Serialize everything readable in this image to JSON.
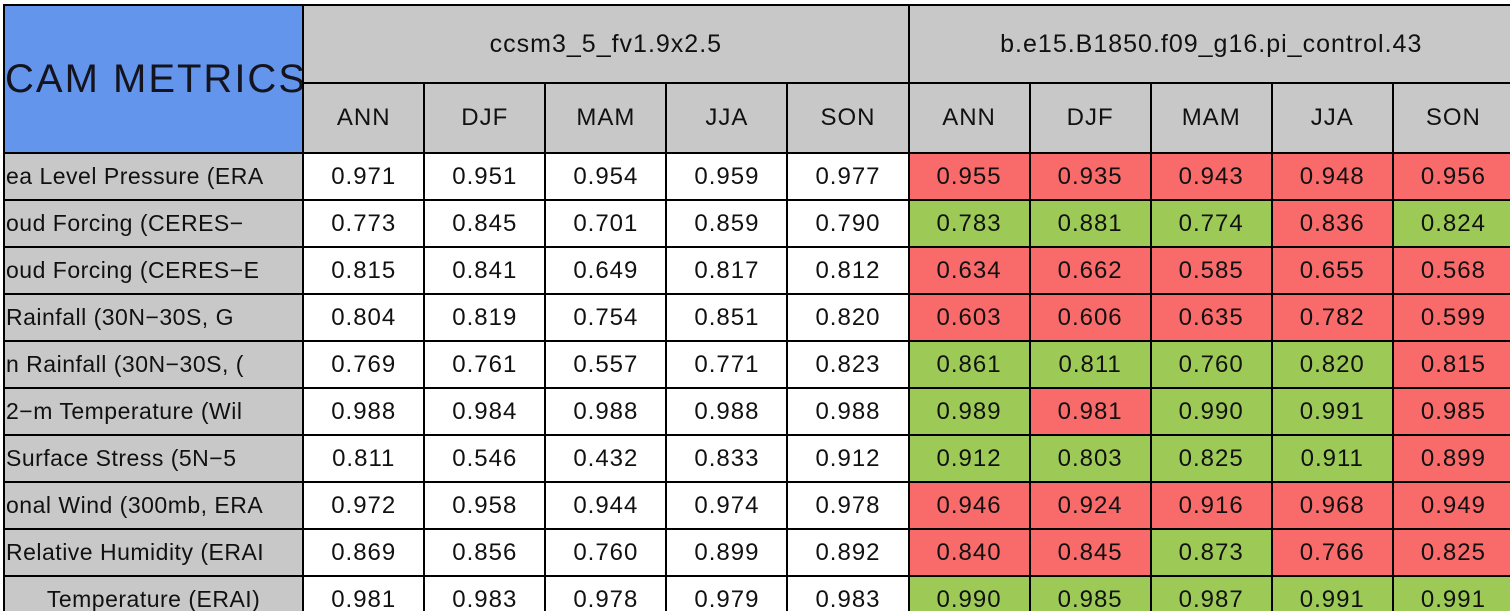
{
  "title": "CAM METRICS",
  "models": [
    "ccsm3_5_fv1.9x2.5",
    "b.e15.B1850.f09_g16.pi_control.43"
  ],
  "seasons": [
    "ANN",
    "DJF",
    "MAM",
    "JJA",
    "SON"
  ],
  "colors": {
    "header_blue": "#6495ED",
    "header_gray": "#C8C8C8",
    "white": "#FFFFFF",
    "green": "#9DCA57",
    "red": "#F96A6A",
    "border": "#000000"
  },
  "chart_data": {
    "type": "table",
    "title": "CAM METRICS",
    "column_groups": [
      "ccsm3_5_fv1.9x2.5",
      "b.e15.B1850.f09_g16.pi_control.43"
    ],
    "columns": [
      "ANN",
      "DJF",
      "MAM",
      "JJA",
      "SON"
    ],
    "cell_color_key": {
      "white": "model 1 values",
      "green": "green highlighted model 2 cell",
      "red": "red highlighted model 2 cell"
    },
    "rows": [
      {
        "label": "ea Level Pressure (ERA",
        "model1": [
          "0.971",
          "0.951",
          "0.954",
          "0.959",
          "0.977"
        ],
        "model2": [
          "0.955",
          "0.935",
          "0.943",
          "0.948",
          "0.956"
        ],
        "model2_colors": [
          "red",
          "red",
          "red",
          "red",
          "red"
        ]
      },
      {
        "label": "oud Forcing (CERES−",
        "model1": [
          "0.773",
          "0.845",
          "0.701",
          "0.859",
          "0.790"
        ],
        "model2": [
          "0.783",
          "0.881",
          "0.774",
          "0.836",
          "0.824"
        ],
        "model2_colors": [
          "green",
          "green",
          "green",
          "red",
          "green"
        ]
      },
      {
        "label": "oud Forcing (CERES−E",
        "model1": [
          "0.815",
          "0.841",
          "0.649",
          "0.817",
          "0.812"
        ],
        "model2": [
          "0.634",
          "0.662",
          "0.585",
          "0.655",
          "0.568"
        ],
        "model2_colors": [
          "red",
          "red",
          "red",
          "red",
          "red"
        ]
      },
      {
        "label": "Rainfall (30N−30S, G",
        "model1": [
          "0.804",
          "0.819",
          "0.754",
          "0.851",
          "0.820"
        ],
        "model2": [
          "0.603",
          "0.606",
          "0.635",
          "0.782",
          "0.599"
        ],
        "model2_colors": [
          "red",
          "red",
          "red",
          "red",
          "red"
        ]
      },
      {
        "label": "n Rainfall (30N−30S, (",
        "model1": [
          "0.769",
          "0.761",
          "0.557",
          "0.771",
          "0.823"
        ],
        "model2": [
          "0.861",
          "0.811",
          "0.760",
          "0.820",
          "0.815"
        ],
        "model2_colors": [
          "green",
          "green",
          "green",
          "green",
          "red"
        ]
      },
      {
        "label": "2−m Temperature (Wil",
        "model1": [
          "0.988",
          "0.984",
          "0.988",
          "0.988",
          "0.988"
        ],
        "model2": [
          "0.989",
          "0.981",
          "0.990",
          "0.991",
          "0.985"
        ],
        "model2_colors": [
          "green",
          "red",
          "green",
          "green",
          "red"
        ]
      },
      {
        "label": "Surface Stress (5N−5",
        "model1": [
          "0.811",
          "0.546",
          "0.432",
          "0.833",
          "0.912"
        ],
        "model2": [
          "0.912",
          "0.803",
          "0.825",
          "0.911",
          "0.899"
        ],
        "model2_colors": [
          "green",
          "green",
          "green",
          "green",
          "red"
        ]
      },
      {
        "label": "onal Wind (300mb, ERA",
        "model1": [
          "0.972",
          "0.958",
          "0.944",
          "0.974",
          "0.978"
        ],
        "model2": [
          "0.946",
          "0.924",
          "0.916",
          "0.968",
          "0.949"
        ],
        "model2_colors": [
          "red",
          "red",
          "red",
          "red",
          "red"
        ]
      },
      {
        "label": "Relative Humidity (ERAI",
        "model1": [
          "0.869",
          "0.856",
          "0.760",
          "0.899",
          "0.892"
        ],
        "model2": [
          "0.840",
          "0.845",
          "0.873",
          "0.766",
          "0.825"
        ],
        "model2_colors": [
          "red",
          "red",
          "green",
          "red",
          "red"
        ]
      },
      {
        "label": "Temperature (ERAI)",
        "model1": [
          "0.981",
          "0.983",
          "0.978",
          "0.979",
          "0.983"
        ],
        "model2": [
          "0.990",
          "0.985",
          "0.987",
          "0.991",
          "0.991"
        ],
        "model2_colors": [
          "green",
          "green",
          "green",
          "green",
          "green"
        ]
      }
    ]
  }
}
